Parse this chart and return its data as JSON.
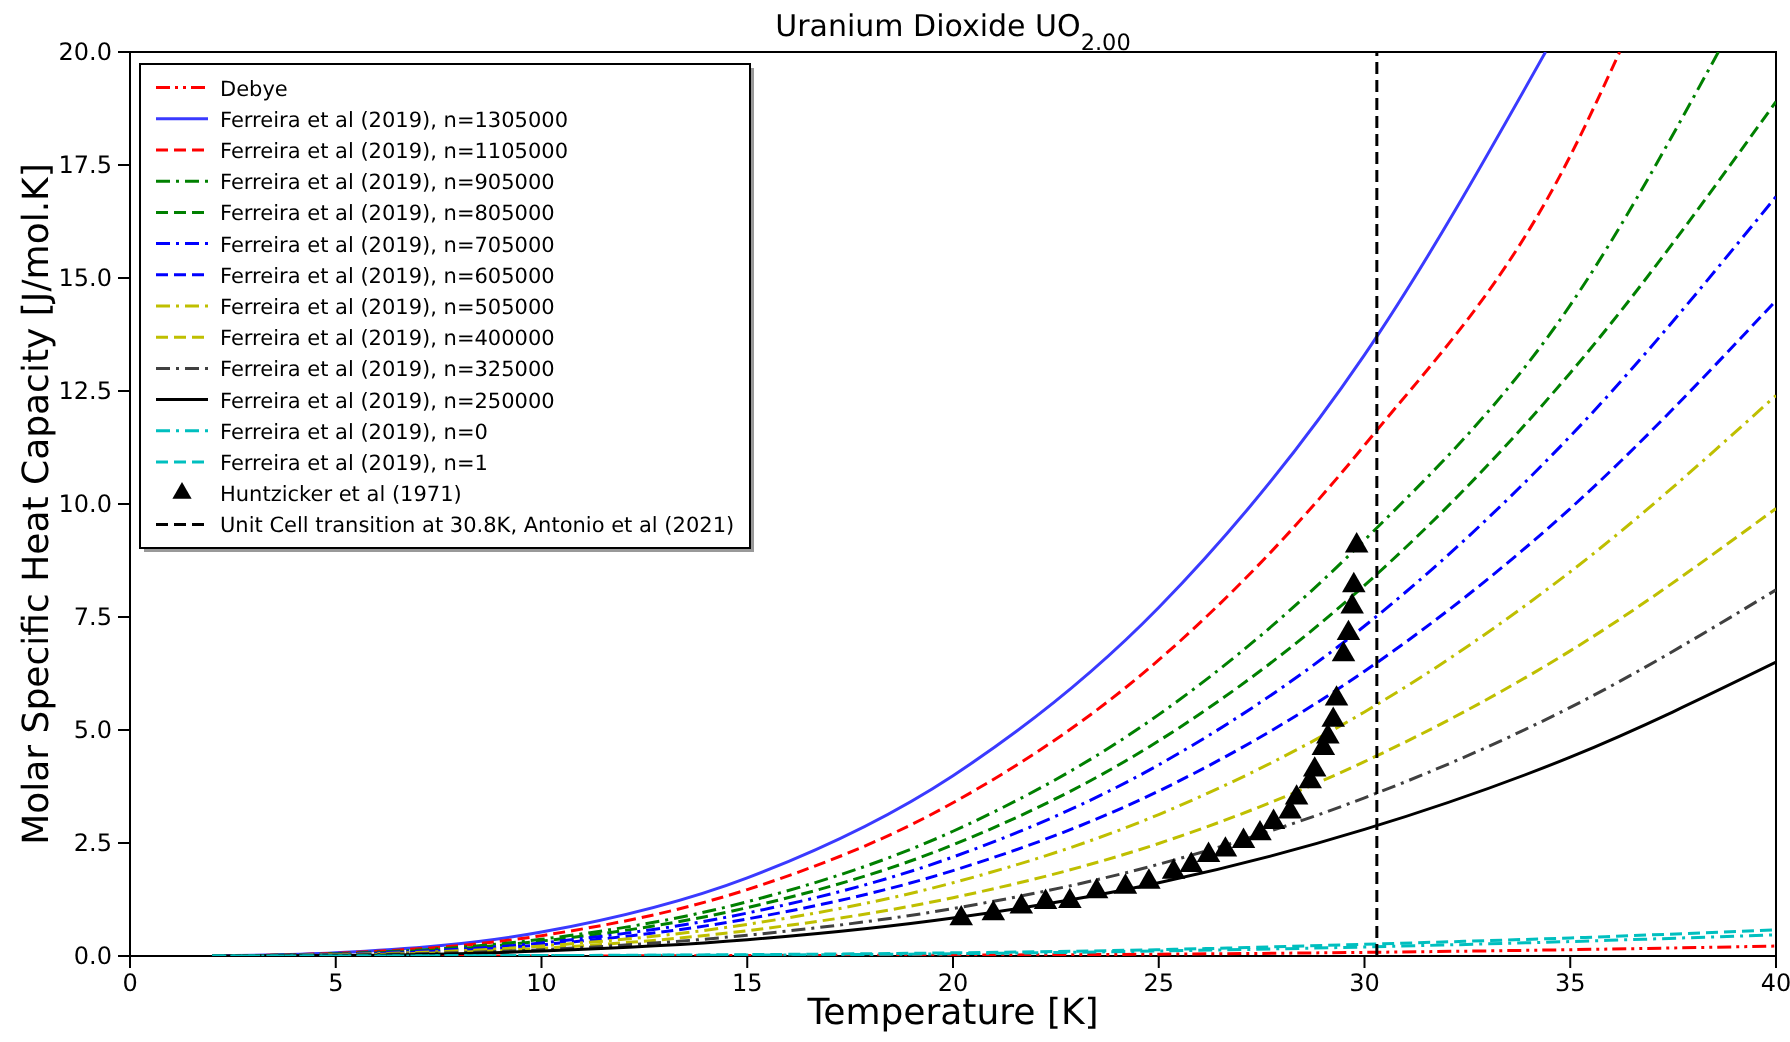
{
  "chart_data": {
    "type": "line",
    "title": "Uranium Dioxide  UO$_{2.00}$",
    "xlabel": "Temperature [K]",
    "ylabel": "Molar Specific Heat Capacity [J/mol.K]",
    "xlim": [
      0,
      40
    ],
    "ylim": [
      0,
      20
    ],
    "xticks": [
      0,
      5,
      10,
      15,
      20,
      25,
      30,
      35,
      40
    ],
    "yticks": [
      {
        "value": 0,
        "label": "0.0"
      },
      {
        "value": 2.5,
        "label": "2.5"
      },
      {
        "value": 5,
        "label": "5.0"
      },
      {
        "value": 7.5,
        "label": "7.5"
      },
      {
        "value": 10,
        "label": "10.0"
      },
      {
        "value": 12.5,
        "label": "12.5"
      },
      {
        "value": 15,
        "label": "15.0"
      },
      {
        "value": 17.5,
        "label": "17.5"
      },
      {
        "value": 20,
        "label": "20.0"
      }
    ],
    "grid": false,
    "legend": "top left",
    "series": [
      {
        "name": "Debye",
        "color": "#ff0000",
        "line_style": "dashdotdot",
        "x": [
          2,
          5,
          10,
          15,
          20,
          25,
          30,
          35,
          40
        ],
        "values": [
          0,
          0,
          0,
          0.01,
          0.02,
          0.04,
          0.08,
          0.14,
          0.22
        ]
      },
      {
        "name": "Ferreira et al (2019), n=1305000",
        "color": "#3a3aff",
        "line_style": "solid",
        "x": [
          2,
          5,
          10,
          15,
          20,
          25,
          30,
          34.4
        ],
        "values": [
          0,
          0.07,
          0.53,
          1.73,
          3.99,
          7.71,
          13.3,
          20
        ]
      },
      {
        "name": "Ferreira et al (2019), n=1105000",
        "color": "#ff0000",
        "line_style": "dashed",
        "x": [
          2,
          5,
          10,
          15,
          20,
          25,
          30,
          35,
          36.2
        ],
        "values": [
          0,
          0.06,
          0.45,
          1.47,
          3.39,
          6.55,
          11.3,
          17.7,
          20
        ]
      },
      {
        "name": "Ferreira et al (2019), n=905000",
        "color": "#008000",
        "line_style": "dashdot",
        "x": [
          2,
          5,
          10,
          15,
          20,
          25,
          30,
          35,
          38.6
        ],
        "values": [
          0,
          0.05,
          0.37,
          1.2,
          2.76,
          5.34,
          9.2,
          14.4,
          20
        ]
      },
      {
        "name": "Ferreira et al (2019), n=805000",
        "color": "#008000",
        "line_style": "dashed",
        "x": [
          2,
          5,
          10,
          15,
          20,
          25,
          30,
          35,
          40
        ],
        "values": [
          0,
          0.04,
          0.33,
          1.07,
          2.46,
          4.76,
          8.2,
          12.9,
          18.9
        ]
      },
      {
        "name": "Ferreira et al (2019), n=705000",
        "color": "#0000ff",
        "line_style": "dashdot",
        "x": [
          2,
          5,
          10,
          15,
          20,
          25,
          30,
          35,
          40
        ],
        "values": [
          0,
          0.04,
          0.29,
          0.95,
          2.19,
          4.23,
          7.3,
          11.5,
          16.8
        ]
      },
      {
        "name": "Ferreira et al (2019), n=605000",
        "color": "#0000ff",
        "line_style": "dashed",
        "x": [
          2,
          5,
          10,
          15,
          20,
          25,
          30,
          35,
          40
        ],
        "values": [
          0,
          0.03,
          0.25,
          0.82,
          1.89,
          3.65,
          6.3,
          9.9,
          14.5
        ]
      },
      {
        "name": "Ferreira et al (2019), n=505000",
        "color": "#bfbf00",
        "line_style": "dashdot",
        "x": [
          2,
          5,
          10,
          15,
          20,
          25,
          30,
          35,
          40
        ],
        "values": [
          0,
          0.03,
          0.22,
          0.7,
          1.62,
          3.13,
          5.4,
          8.5,
          12.4
        ]
      },
      {
        "name": "Ferreira et al (2019), n=400000",
        "color": "#bfbf00",
        "line_style": "dashed",
        "x": [
          2,
          5,
          10,
          15,
          20,
          25,
          30,
          35,
          40
        ],
        "values": [
          0,
          0.02,
          0.17,
          0.56,
          1.29,
          2.49,
          4.3,
          6.75,
          9.9
        ]
      },
      {
        "name": "Ferreira et al (2019), n=325000",
        "color": "#404040",
        "line_style": "dashdot",
        "x": [
          2,
          5,
          10,
          15,
          20,
          25,
          30,
          35,
          40
        ],
        "values": [
          0,
          0.02,
          0.14,
          0.46,
          1.05,
          2.03,
          3.5,
          5.5,
          8.1
        ]
      },
      {
        "name": "Ferreira et al (2019), n=250000",
        "color": "#000000",
        "line_style": "solid",
        "x": [
          2,
          5,
          10,
          15,
          20,
          25,
          30,
          35,
          40
        ],
        "values": [
          0,
          0.01,
          0.11,
          0.36,
          0.84,
          1.62,
          2.8,
          4.4,
          6.5
        ]
      },
      {
        "name": "Ferreira et al (2019), n=0",
        "color": "#00bfbf",
        "line_style": "dashdot",
        "x": [
          2,
          5,
          10,
          15,
          20,
          25,
          30,
          35,
          40
        ],
        "values": [
          0,
          0,
          0.01,
          0.02,
          0.05,
          0.11,
          0.2,
          0.32,
          0.47
        ]
      },
      {
        "name": "Ferreira et al (2019), n=1",
        "color": "#00bfbf",
        "line_style": "dashed",
        "x": [
          2,
          5,
          10,
          15,
          20,
          25,
          30,
          35,
          40
        ],
        "values": [
          0,
          0,
          0.01,
          0.03,
          0.07,
          0.14,
          0.26,
          0.4,
          0.58
        ]
      },
      {
        "name": "Huntzicker et al (1971)",
        "type": "scatter",
        "marker": "triangle",
        "color": "#000000",
        "x": [
          20.2,
          20.98,
          21.66,
          22.25,
          22.84,
          23.49,
          24.19,
          24.76,
          25.36,
          25.79,
          26.21,
          26.62,
          27.06,
          27.46,
          27.79,
          28.19,
          28.35,
          28.68,
          28.79,
          29.0,
          29.11,
          29.24,
          29.32,
          29.49,
          29.61,
          29.7,
          29.74,
          29.81
        ],
        "values": [
          0.83,
          0.94,
          1.09,
          1.19,
          1.21,
          1.43,
          1.53,
          1.64,
          1.86,
          2.01,
          2.23,
          2.35,
          2.54,
          2.71,
          2.96,
          3.19,
          3.5,
          3.86,
          4.12,
          4.6,
          4.85,
          5.22,
          5.69,
          6.67,
          7.14,
          7.73,
          8.2,
          9.08
        ]
      },
      {
        "name": "Unit Cell transition at 30.8K, Antonio et al (2021)",
        "color": "#000000",
        "line_style": "dashed",
        "x": [
          30.3,
          30.3
        ],
        "values": [
          0,
          20
        ]
      }
    ]
  }
}
